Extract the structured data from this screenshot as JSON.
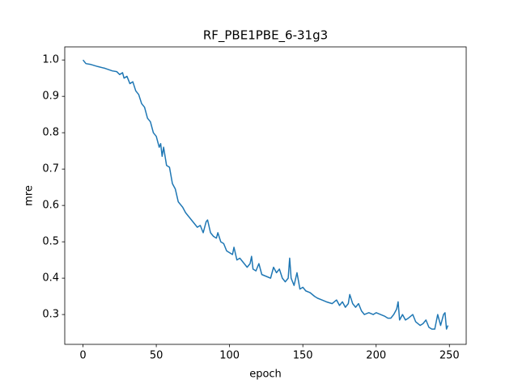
{
  "chart_data": {
    "type": "line",
    "title": "RF_PBE1PBE_6-31g3",
    "x_label": "epoch",
    "y_label": "mre",
    "color": "#1f77b4",
    "x": [
      0,
      2,
      5,
      10,
      15,
      20,
      23,
      25,
      27,
      28,
      30,
      32,
      34,
      36,
      38,
      40,
      42,
      44,
      46,
      48,
      50,
      52,
      53,
      54,
      55,
      57,
      59,
      61,
      63,
      65,
      68,
      70,
      73,
      76,
      78,
      80,
      82,
      84,
      85,
      87,
      89,
      91,
      92,
      94,
      96,
      98,
      100,
      102,
      103,
      105,
      107,
      110,
      112,
      114,
      115,
      116,
      118,
      120,
      122,
      125,
      128,
      130,
      132,
      134,
      136,
      138,
      140,
      141,
      142,
      144,
      146,
      148,
      150,
      152,
      155,
      158,
      160,
      163,
      166,
      170,
      173,
      175,
      177,
      179,
      181,
      182,
      184,
      186,
      188,
      190,
      192,
      195,
      198,
      200,
      203,
      206,
      208,
      210,
      212,
      214,
      215,
      216,
      218,
      220,
      222,
      225,
      227,
      230,
      232,
      234,
      236,
      238,
      240,
      242,
      244,
      246,
      247,
      248,
      249
    ],
    "values": [
      1.0,
      0.99,
      0.988,
      0.982,
      0.977,
      0.97,
      0.968,
      0.96,
      0.965,
      0.95,
      0.955,
      0.935,
      0.94,
      0.915,
      0.905,
      0.88,
      0.87,
      0.84,
      0.83,
      0.8,
      0.79,
      0.76,
      0.77,
      0.735,
      0.76,
      0.71,
      0.705,
      0.66,
      0.645,
      0.61,
      0.595,
      0.58,
      0.565,
      0.55,
      0.54,
      0.545,
      0.525,
      0.555,
      0.56,
      0.525,
      0.515,
      0.51,
      0.525,
      0.5,
      0.495,
      0.475,
      0.47,
      0.465,
      0.485,
      0.45,
      0.455,
      0.44,
      0.43,
      0.44,
      0.46,
      0.425,
      0.42,
      0.44,
      0.41,
      0.405,
      0.4,
      0.43,
      0.415,
      0.425,
      0.4,
      0.39,
      0.4,
      0.455,
      0.4,
      0.38,
      0.415,
      0.37,
      0.375,
      0.365,
      0.36,
      0.35,
      0.345,
      0.34,
      0.335,
      0.33,
      0.34,
      0.325,
      0.335,
      0.32,
      0.33,
      0.355,
      0.33,
      0.32,
      0.33,
      0.31,
      0.3,
      0.305,
      0.3,
      0.305,
      0.3,
      0.295,
      0.29,
      0.29,
      0.3,
      0.315,
      0.335,
      0.285,
      0.3,
      0.285,
      0.29,
      0.3,
      0.28,
      0.27,
      0.275,
      0.285,
      0.265,
      0.26,
      0.26,
      0.3,
      0.27,
      0.3,
      0.305,
      0.26,
      0.27
    ],
    "xlim": [
      -12.45,
      261.45
    ],
    "ylim": [
      0.218,
      1.036
    ],
    "xticks": [
      0,
      50,
      100,
      150,
      200,
      250
    ],
    "yticks": [
      0.3,
      0.4,
      0.5,
      0.6,
      0.7,
      0.8,
      0.9,
      {
        "value": 1,
        "label": "1.0"
      }
    ]
  }
}
